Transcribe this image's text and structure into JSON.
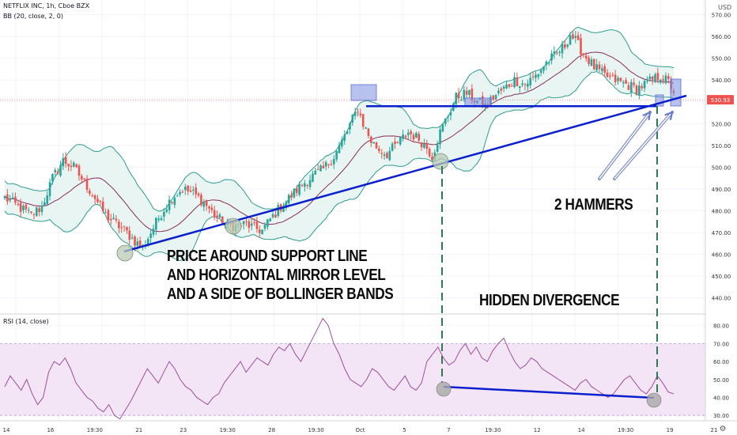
{
  "header": {
    "symbol_line": "NETFLIX INC, 1h, Cboe BZX",
    "bb_line": "BB (20, close, 2, 0)",
    "rsi_line": "RSI (14, close)",
    "currency": "USD"
  },
  "annotations": {
    "support_line_1": "PRICE AROUND SUPPORT LINE",
    "support_line_2": "AND HORIZONTAL MIRROR LEVEL",
    "support_line_3": "AND A SIDE OF BOLLINGER BANDS",
    "hammers": "2 HAMMERS",
    "divergence": "HIDDEN DIVERGENCE"
  },
  "colors": {
    "up": "#26a69a",
    "down": "#ef5350",
    "bb_basis": "#8b2c5c",
    "bb_band": "#2e9c8e",
    "bb_fill": "#e8f5f2",
    "rsi_line": "#9c4f9c",
    "rsi_fill": "#f3e5f5",
    "drawing": "#0b1fcf",
    "marker_box": "#7e8fe0"
  },
  "chart_data": [
    {
      "type": "candlestick",
      "title": "NETFLIX INC, 1h, Cboe BZX",
      "indicator": "BB (20, close, 2, 0)",
      "x_ticks": [
        "14",
        "16",
        "19:30",
        "21",
        "23",
        "19:30",
        "28",
        "19:30",
        "Oct",
        "5",
        "7",
        "19:30",
        "12",
        "14",
        "19:30",
        "19",
        "21"
      ],
      "y_ticks": [
        440,
        450,
        460,
        470,
        480,
        490,
        500,
        510,
        520,
        530,
        540,
        550,
        560,
        570
      ],
      "y_range": [
        433,
        576
      ],
      "last_price": "530.93",
      "close_path": [
        [
          0,
          486
        ],
        [
          5,
          482
        ],
        [
          10,
          478
        ],
        [
          14,
          482
        ],
        [
          18,
          495
        ],
        [
          22,
          503
        ],
        [
          26,
          500
        ],
        [
          30,
          493
        ],
        [
          34,
          486
        ],
        [
          38,
          478
        ],
        [
          42,
          474
        ],
        [
          46,
          470
        ],
        [
          49,
          466
        ],
        [
          52,
          463
        ],
        [
          55,
          470
        ],
        [
          59,
          479
        ],
        [
          63,
          486
        ],
        [
          67,
          490
        ],
        [
          71,
          488
        ],
        [
          75,
          484
        ],
        [
          79,
          478
        ],
        [
          83,
          474
        ],
        [
          87,
          473
        ],
        [
          91,
          474
        ],
        [
          94,
          472
        ],
        [
          97,
          471
        ],
        [
          100,
          476
        ],
        [
          104,
          482
        ],
        [
          108,
          487
        ],
        [
          112,
          492
        ],
        [
          116,
          496
        ],
        [
          120,
          499
        ],
        [
          124,
          505
        ],
        [
          128,
          514
        ],
        [
          131,
          522
        ],
        [
          133,
          527
        ],
        [
          135,
          520
        ],
        [
          138,
          512
        ],
        [
          141,
          508
        ],
        [
          144,
          506
        ],
        [
          148,
          511
        ],
        [
          152,
          516
        ],
        [
          156,
          513
        ],
        [
          159,
          509
        ],
        [
          161,
          505
        ],
        [
          164,
          516
        ],
        [
          167,
          524
        ],
        [
          170,
          532
        ],
        [
          174,
          534
        ],
        [
          178,
          530
        ],
        [
          181,
          528
        ],
        [
          184,
          532
        ],
        [
          188,
          536
        ],
        [
          192,
          540
        ],
        [
          196,
          538
        ],
        [
          200,
          542
        ],
        [
          204,
          548
        ],
        [
          208,
          552
        ],
        [
          211,
          556
        ],
        [
          213,
          561
        ],
        [
          215,
          558
        ],
        [
          218,
          552
        ],
        [
          222,
          546
        ],
        [
          226,
          542
        ],
        [
          230,
          540
        ],
        [
          234,
          538
        ],
        [
          238,
          536
        ],
        [
          241,
          538
        ],
        [
          244,
          540
        ],
        [
          247,
          542
        ],
        [
          250,
          539
        ],
        [
          252,
          535
        ]
      ],
      "drawings": {
        "support_trendline": [
          [
            0.3,
            459
          ],
          [
            1.0,
            530
          ]
        ],
        "horizontal_mirror_level": 528,
        "touch_points": [
          460,
          472,
          500
        ]
      },
      "annotations": [
        "PRICE AROUND SUPPORT LINE",
        "AND HORIZONTAL MIRROR LEVEL",
        "AND A SIDE OF BOLLINGER BANDS",
        "2 HAMMERS"
      ]
    },
    {
      "type": "line",
      "title": "RSI (14, close)",
      "y_ticks": [
        30,
        40,
        50,
        60,
        70,
        80
      ],
      "y_range": [
        27,
        86
      ],
      "band": [
        30,
        70
      ],
      "values": [
        46,
        52,
        48,
        44,
        50,
        42,
        36,
        40,
        54,
        60,
        58,
        62,
        56,
        48,
        44,
        40,
        38,
        34,
        32,
        36,
        30,
        28,
        33,
        38,
        44,
        50,
        56,
        52,
        48,
        54,
        60,
        56,
        50,
        46,
        44,
        40,
        38,
        36,
        40,
        42,
        48,
        52,
        56,
        60,
        54,
        58,
        62,
        60,
        58,
        64,
        68,
        66,
        70,
        64,
        60,
        66,
        72,
        78,
        84,
        80,
        70,
        64,
        56,
        50,
        48,
        46,
        50,
        56,
        54,
        50,
        46,
        44,
        48,
        52,
        46,
        44,
        48,
        60,
        64,
        68,
        62,
        58,
        60,
        66,
        70,
        64,
        68,
        62,
        60,
        66,
        70,
        73,
        66,
        60,
        56,
        58,
        62,
        60,
        56,
        54,
        52,
        50,
        48,
        46,
        44,
        48,
        50,
        46,
        44,
        42,
        40,
        42,
        46,
        50,
        52,
        48,
        44,
        42,
        46,
        52,
        48,
        43,
        42
      ],
      "drawings": {
        "divergence_line": [
          44,
          38
        ]
      },
      "annotations": [
        "HIDDEN DIVERGENCE"
      ]
    }
  ]
}
